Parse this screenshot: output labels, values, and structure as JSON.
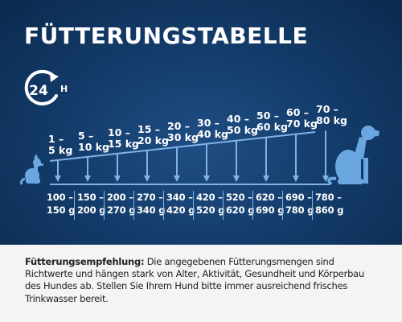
{
  "title": "FÜTTERUNGSTABELLE",
  "icon_24h": {
    "label": "24",
    "suffix": "H"
  },
  "colors": {
    "background_dark": "#0b2a4e",
    "background_mid": "#1f4e84",
    "accent_blue": "#7fb3e8",
    "footer_bg": "#f4f4f4",
    "text_dark": "#222222"
  },
  "weight_ranges": [
    {
      "range": "1 –",
      "unit": "5 kg"
    },
    {
      "range": "5 –",
      "unit": "10 kg"
    },
    {
      "range": "10 –",
      "unit": "15 kg"
    },
    {
      "range": "15 –",
      "unit": "20 kg"
    },
    {
      "range": "20 –",
      "unit": "30 kg"
    },
    {
      "range": "30 –",
      "unit": "40 kg"
    },
    {
      "range": "40 –",
      "unit": "50 kg"
    },
    {
      "range": "50 –",
      "unit": "60 kg"
    },
    {
      "range": "60 –",
      "unit": "70 kg"
    },
    {
      "range": "70 –",
      "unit": "80 kg"
    }
  ],
  "gram_amounts": [
    {
      "from": "100 –",
      "to": "150 g"
    },
    {
      "from": "150 –",
      "to": "200 g"
    },
    {
      "from": "200 –",
      "to": "270 g"
    },
    {
      "from": "270 –",
      "to": "340 g"
    },
    {
      "from": "340 –",
      "to": "420 g"
    },
    {
      "from": "420 –",
      "to": "520 g"
    },
    {
      "from": "520 –",
      "to": "620 g"
    },
    {
      "from": "620 –",
      "to": "690 g"
    },
    {
      "from": "690 –",
      "to": "780 g"
    },
    {
      "from": "780 –",
      "to": "860 g"
    }
  ],
  "recommendation": {
    "label": "Fütterungsempfehlung:",
    "text": " Die angegebenen Fütterungsmengen sind Richtwerte und hängen stark von Alter, Aktivität, Gesundheit und Körperbau des Hundes ab. Stellen Sie Ihrem Hund bitte immer ausreichend frisches Trinkwasser bereit."
  },
  "icons": [
    "clock-24h-icon",
    "small-dog-icon",
    "large-dog-icon",
    "arrow-down-icon"
  ]
}
